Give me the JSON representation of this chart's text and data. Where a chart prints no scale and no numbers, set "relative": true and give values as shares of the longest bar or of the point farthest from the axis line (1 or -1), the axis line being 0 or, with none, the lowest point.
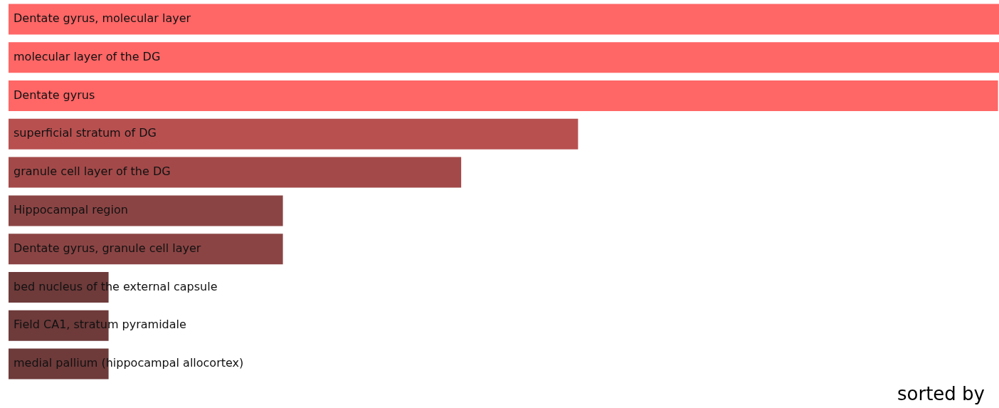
{
  "chart_data": {
    "type": "bar",
    "orientation": "horizontal",
    "relative": true,
    "categories": [
      "Dentate gyrus, molecular layer",
      "molecular layer of the DG",
      "Dentate gyrus",
      "superficial stratum of DG",
      "granule cell layer of the DG",
      "Hippocampal region",
      "Dentate gyrus, granule cell layer",
      "bed nucleus of the external capsule",
      "Field CA1, stratum pyramidale",
      "medial pallium (hippocampal allocortex)"
    ],
    "values": [
      1,
      1,
      0.999,
      0.575,
      0.457,
      0.277,
      0.277,
      0.101,
      0.101,
      0.101
    ],
    "colors": [
      "#ff6666",
      "#ff6666",
      "#ff6666",
      "#b85050",
      "#a34949",
      "#8b4444",
      "#8b4444",
      "#6e3a3a",
      "#6e3a3a",
      "#6e3a3a"
    ],
    "legend": false,
    "annotations": [
      "sorted by"
    ]
  }
}
